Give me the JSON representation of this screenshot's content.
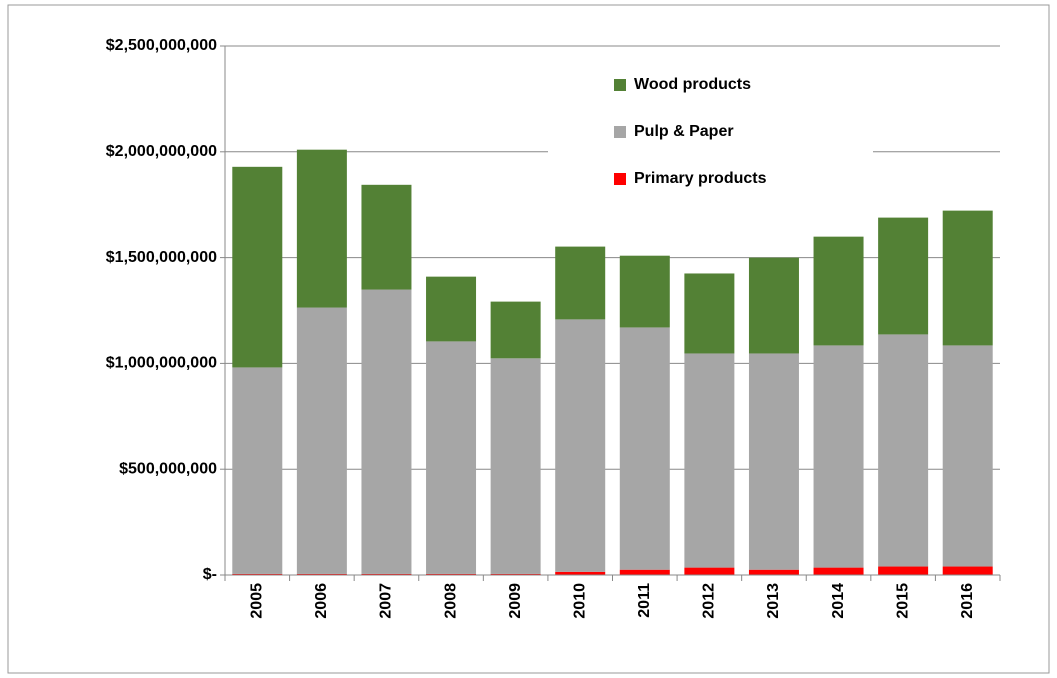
{
  "chart_data": {
    "type": "stacked_bar",
    "categories": [
      "2005",
      "2006",
      "2007",
      "2008",
      "2009",
      "2010",
      "2011",
      "2012",
      "2013",
      "2014",
      "2015",
      "2016"
    ],
    "series": [
      {
        "name": "Primary products",
        "color": "#ff0000",
        "values": [
          5000000,
          5000000,
          5000000,
          5000000,
          5000000,
          15000000,
          25000000,
          35000000,
          25000000,
          35000000,
          40000000,
          40000000
        ]
      },
      {
        "name": "Pulp & Paper",
        "color": "#a6a6a6",
        "values": [
          976000000,
          1259000000,
          1344000000,
          1099000000,
          1019000000,
          1193000000,
          1145000000,
          1012000000,
          1022000000,
          1050000000,
          1097000000,
          1045000000
        ]
      },
      {
        "name": "Wood products",
        "color": "#538135",
        "values": [
          948000000,
          746000000,
          495000000,
          306000000,
          268000000,
          344000000,
          339000000,
          378000000,
          453000000,
          514000000,
          552000000,
          637000000
        ]
      }
    ],
    "ylim": [
      0,
      2500000000
    ],
    "yticks": [
      {
        "value": 0,
        "label": "$-"
      },
      {
        "value": 500000000,
        "label": "$500,000,000"
      },
      {
        "value": 1000000000,
        "label": "$1,000,000,000"
      },
      {
        "value": 1500000000,
        "label": "$1,500,000,000"
      },
      {
        "value": 2000000000,
        "label": "$2,000,000,000"
      },
      {
        "value": 2500000000,
        "label": "$2,500,000,000"
      }
    ],
    "grid": true,
    "legend": "top-right"
  }
}
